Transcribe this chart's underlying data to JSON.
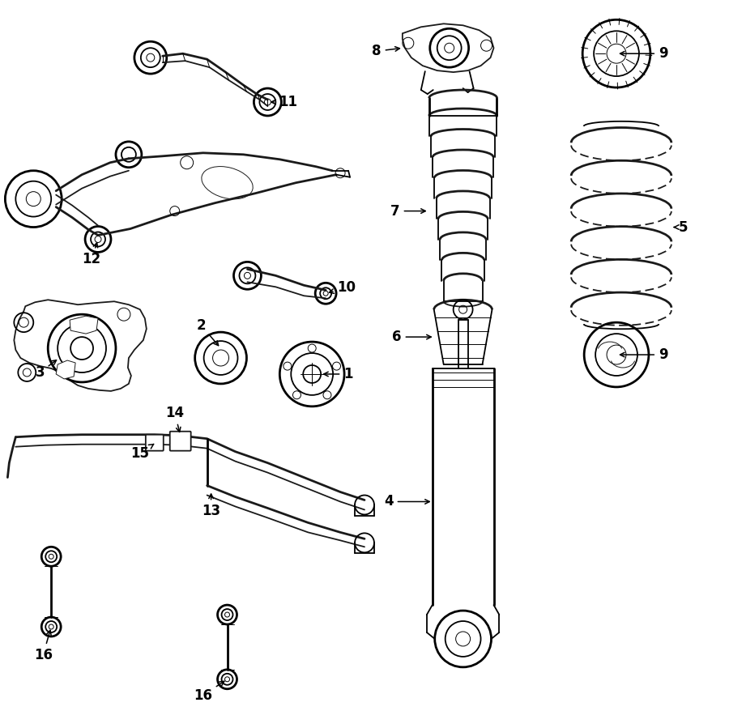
{
  "background_color": "#ffffff",
  "line_color": "#1a1a1a",
  "figsize": [
    9.0,
    8.99
  ],
  "dpi": 100,
  "label_fontsize": 12,
  "lw_main": 1.3,
  "lw_thick": 2.0,
  "lw_thin": 0.7
}
